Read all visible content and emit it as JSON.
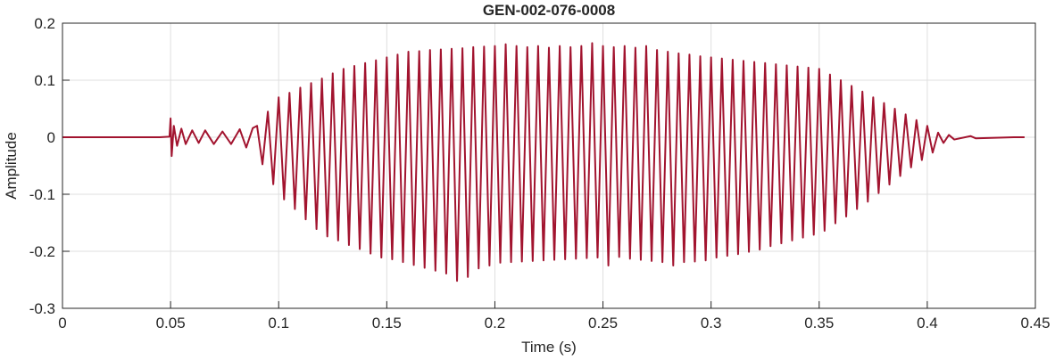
{
  "chart_data": {
    "type": "line",
    "title": "GEN-002-076-0008",
    "x_label": "Time (s)",
    "y_label": "Amplitude",
    "color": "#a2142f",
    "grid": true,
    "xlim": [
      0,
      0.45
    ],
    "ylim": [
      -0.3,
      0.2
    ],
    "xticks": [
      0,
      0.05,
      0.1,
      0.15,
      0.2,
      0.25,
      0.3,
      0.35,
      0.4,
      0.45
    ],
    "yticks": [
      -0.3,
      -0.2,
      -0.1,
      0,
      0.1,
      0.2
    ],
    "x": [
      0,
      0.045,
      0.0495,
      0.05,
      0.0505,
      0.0515,
      0.053,
      0.055,
      0.057,
      0.06,
      0.063,
      0.066,
      0.07,
      0.074,
      0.078,
      0.082,
      0.085,
      0.088,
      0.09,
      0.0925,
      0.095,
      0.0975,
      0.1,
      0.1025,
      0.105,
      0.1075,
      0.11,
      0.1125,
      0.115,
      0.1175,
      0.12,
      0.1225,
      0.125,
      0.1275,
      0.13,
      0.1325,
      0.135,
      0.1375,
      0.14,
      0.1425,
      0.145,
      0.1475,
      0.15,
      0.1525,
      0.155,
      0.1575,
      0.16,
      0.1625,
      0.165,
      0.1675,
      0.17,
      0.1725,
      0.175,
      0.1775,
      0.18,
      0.1825,
      0.185,
      0.1875,
      0.19,
      0.1925,
      0.195,
      0.1975,
      0.2,
      0.2025,
      0.205,
      0.2075,
      0.21,
      0.2125,
      0.215,
      0.2175,
      0.22,
      0.2225,
      0.225,
      0.2275,
      0.23,
      0.2325,
      0.235,
      0.2375,
      0.24,
      0.2425,
      0.245,
      0.2475,
      0.25,
      0.2525,
      0.255,
      0.2575,
      0.26,
      0.2625,
      0.265,
      0.2675,
      0.27,
      0.2725,
      0.275,
      0.2775,
      0.28,
      0.2825,
      0.285,
      0.2875,
      0.29,
      0.2925,
      0.295,
      0.2975,
      0.3,
      0.3025,
      0.305,
      0.3075,
      0.31,
      0.3125,
      0.315,
      0.3175,
      0.32,
      0.3225,
      0.325,
      0.3275,
      0.33,
      0.3325,
      0.335,
      0.3375,
      0.34,
      0.3425,
      0.345,
      0.3475,
      0.35,
      0.3525,
      0.355,
      0.3575,
      0.36,
      0.3625,
      0.365,
      0.3675,
      0.37,
      0.3725,
      0.375,
      0.3775,
      0.38,
      0.3825,
      0.385,
      0.3875,
      0.39,
      0.3925,
      0.395,
      0.3975,
      0.4,
      0.4025,
      0.405,
      0.4075,
      0.41,
      0.4125,
      0.42,
      0.4225,
      0.44,
      0.445
    ],
    "values": [
      0,
      0,
      0.001,
      0.033,
      -0.033,
      0.02,
      -0.015,
      0.015,
      -0.012,
      0.012,
      -0.01,
      0.012,
      -0.012,
      0.01,
      -0.012,
      0.014,
      -0.018,
      0.016,
      0.02,
      -0.0475,
      0.045,
      -0.0825,
      0.07,
      -0.109,
      0.078,
      -0.126,
      0.087,
      -0.144,
      0.095,
      -0.161,
      0.103,
      -0.174,
      0.112,
      -0.181,
      0.12,
      -0.189,
      0.125,
      -0.196,
      0.13,
      -0.204,
      0.135,
      -0.211,
      0.14,
      -0.214,
      0.145,
      -0.219,
      0.15,
      -0.224,
      0.151,
      -0.229,
      0.153,
      -0.234,
      0.154,
      -0.239,
      0.155,
      -0.252,
      0.156,
      -0.245,
      0.158,
      -0.23,
      0.159,
      -0.225,
      0.16,
      -0.22,
      0.163,
      -0.219,
      0.16,
      -0.218,
      0.158,
      -0.217,
      0.16,
      -0.216,
      0.157,
      -0.215,
      0.16,
      -0.214,
      0.158,
      -0.213,
      0.16,
      -0.212,
      0.165,
      -0.211,
      0.16,
      -0.225,
      0.158,
      -0.21,
      0.16,
      -0.213,
      0.157,
      -0.215,
      0.16,
      -0.217,
      0.153,
      -0.219,
      0.15,
      -0.225,
      0.147,
      -0.219,
      0.145,
      -0.218,
      0.142,
      -0.216,
      0.14,
      -0.211,
      0.138,
      -0.208,
      0.136,
      -0.205,
      0.134,
      -0.201,
      0.132,
      -0.197,
      0.13,
      -0.191,
      0.128,
      -0.186,
      0.126,
      -0.181,
      0.124,
      -0.176,
      0.122,
      -0.171,
      0.12,
      -0.164,
      0.11,
      -0.151,
      0.1,
      -0.139,
      0.09,
      -0.126,
      0.08,
      -0.113,
      0.07,
      -0.098,
      0.06,
      -0.083,
      0.05,
      -0.068,
      0.04,
      -0.053,
      0.03,
      -0.04,
      0.02,
      -0.027,
      0.008,
      -0.01,
      0.004,
      -0.004,
      0.002,
      -0.002,
      0,
      0
    ]
  }
}
